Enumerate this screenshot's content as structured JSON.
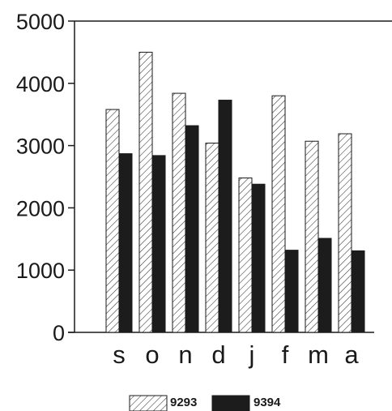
{
  "chart_data": {
    "type": "bar",
    "categories": [
      "s",
      "o",
      "n",
      "d",
      "j",
      "f",
      "m",
      "a"
    ],
    "series": [
      {
        "name": "9293",
        "values": [
          3580,
          4500,
          3840,
          3040,
          2480,
          3800,
          3070,
          3190
        ],
        "pattern": "hatched",
        "color": "#ffffff"
      },
      {
        "name": "9394",
        "values": [
          2870,
          2840,
          3320,
          3730,
          2380,
          1320,
          1510,
          1310
        ],
        "pattern": "solid",
        "color": "#1c1c1c"
      }
    ],
    "yticks": [
      "0",
      "1000",
      "2000",
      "3000",
      "4000",
      "5000"
    ],
    "ylim": [
      0,
      5000
    ],
    "grid": false,
    "legend_position": "bottom-center",
    "title": "",
    "xlabel": "",
    "ylabel": ""
  }
}
